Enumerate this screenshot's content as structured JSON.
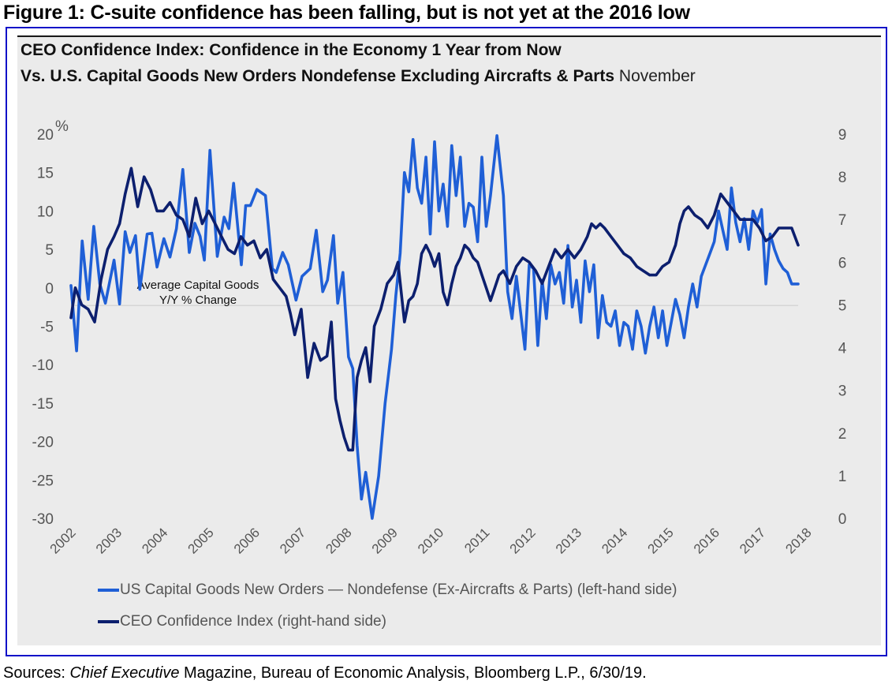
{
  "figure_title": "Figure 1: C-suite confidence has been falling, but is not yet at the 2016 low",
  "chart_title_line1": "CEO Confidence Index: Confidence in the Economy 1 Year from Now",
  "chart_title_line2_bold": "Vs. U.S. Capital Goods New Orders Nondefense Excluding Aircrafts & Parts",
  "chart_title_line2_normal": " November",
  "source_prefix": "Sources: ",
  "source_italic": "Chief Executive",
  "source_rest": " Magazine, Bureau of Economic Analysis, Bloomberg L.P., 6/30/19.",
  "colors": {
    "capital_goods": "#1f5fd6",
    "ceo_confidence": "#0c1f6e",
    "frame_border": "#1010c8",
    "panel_bg": "#ebebeb",
    "average_line": "#cfcfcf"
  },
  "chart_data": {
    "type": "line",
    "title": "CEO Confidence Index: Confidence in the Economy 1 Year from Now Vs. U.S. Capital Goods New Orders Nondefense Excluding Aircrafts & Parts November",
    "xlabel": "",
    "ylabel_left": "%",
    "ylabel_right": "",
    "x_tick_labels": [
      "2002",
      "2003",
      "2004",
      "2005",
      "2006",
      "2007",
      "2008",
      "2009",
      "2010",
      "2011",
      "2012",
      "2013",
      "2014",
      "2015",
      "2016",
      "2017",
      "2018"
    ],
    "x_range": [
      2002.0,
      2018.9
    ],
    "y_left": {
      "range": [
        -30,
        20
      ],
      "ticks": [
        20,
        15,
        10,
        5,
        0,
        -5,
        -10,
        -15,
        -20,
        -25,
        -30
      ],
      "unit_label": "%"
    },
    "y_right": {
      "range": [
        0,
        9
      ],
      "ticks": [
        9,
        8,
        7,
        6,
        5,
        4,
        3,
        2,
        1,
        0
      ]
    },
    "grid": false,
    "legend_position": "bottom-left",
    "legend": [
      "US Capital Goods New Orders — Nondefense (Ex-Aircrafts & Parts) (left-hand side)",
      "CEO Confidence Index (right-hand side)"
    ],
    "annotations": [
      {
        "text_line1": "Average Capital Goods",
        "text_line2": "Y/Y % Change",
        "value_left_axis": -2.3
      }
    ],
    "series": [
      {
        "name": "US Capital Goods New Orders — Nondefense (Ex-Aircrafts & Parts) (left-hand side)",
        "axis": "left",
        "x": [
          2002.0,
          2002.13,
          2002.26,
          2002.4,
          2002.53,
          2002.67,
          2002.8,
          2003.0,
          2003.13,
          2003.26,
          2003.37,
          2003.5,
          2003.6,
          2003.77,
          2003.88,
          2004.0,
          2004.16,
          2004.3,
          2004.45,
          2004.6,
          2004.75,
          2004.88,
          2005.0,
          2005.1,
          2005.23,
          2005.4,
          2005.56,
          2005.67,
          2005.78,
          2005.96,
          2006.06,
          2006.17,
          2006.32,
          2006.52,
          2006.68,
          2006.77,
          2006.92,
          2007.05,
          2007.23,
          2007.37,
          2007.56,
          2007.7,
          2007.85,
          2007.96,
          2008.1,
          2008.2,
          2008.32,
          2008.45,
          2008.55,
          2008.65,
          2008.75,
          2008.85,
          2009.0,
          2009.15,
          2009.3,
          2009.45,
          2009.55,
          2009.65,
          2009.75,
          2009.85,
          2009.95,
          2010.05,
          2010.15,
          2010.25,
          2010.35,
          2010.45,
          2010.55,
          2010.65,
          2010.75,
          2010.85,
          2010.95,
          2011.05,
          2011.15,
          2011.25,
          2011.35,
          2011.45,
          2011.55,
          2011.65,
          2011.75,
          2011.9,
          2012.05,
          2012.15,
          2012.25,
          2012.35,
          2012.45,
          2012.55,
          2012.65,
          2012.75,
          2012.85,
          2012.95,
          2013.05,
          2013.15,
          2013.25,
          2013.35,
          2013.45,
          2013.55,
          2013.65,
          2013.75,
          2013.85,
          2013.95,
          2014.05,
          2014.15,
          2014.25,
          2014.35,
          2014.45,
          2014.55,
          2014.65,
          2014.75,
          2014.85,
          2014.95,
          2015.05,
          2015.15,
          2015.25,
          2015.35,
          2015.45,
          2015.55,
          2015.65,
          2015.75,
          2015.85,
          2015.95,
          2016.05,
          2016.15,
          2016.25,
          2016.35,
          2016.45,
          2016.55,
          2016.65,
          2016.75,
          2016.85,
          2016.95,
          2017.05,
          2017.15,
          2017.25,
          2017.35,
          2017.45,
          2017.55,
          2017.65,
          2017.75,
          2017.85,
          2017.95,
          2018.05,
          2018.15,
          2018.25,
          2018.35,
          2018.45,
          2018.55,
          2018.65,
          2018.75,
          2018.9
        ],
        "values": [
          0.3,
          -8.2,
          6.1,
          -1.5,
          8.0,
          0.5,
          -2.0,
          3.6,
          -2.1,
          7.3,
          4.6,
          6.8,
          -0.2,
          7.0,
          7.1,
          2.7,
          6.4,
          4.0,
          7.7,
          15.4,
          4.6,
          8.4,
          6.7,
          3.6,
          17.9,
          4.1,
          9.2,
          7.7,
          13.6,
          3.0,
          10.7,
          10.7,
          12.8,
          12.0,
          2.5,
          2.0,
          4.6,
          3.0,
          -1.6,
          1.5,
          2.5,
          7.5,
          -0.5,
          1.0,
          6.8,
          -2.0,
          2.0,
          -9.0,
          -10.5,
          -20.5,
          -27.5,
          -24.0,
          -30.0,
          -24.5,
          -15.0,
          -8.0,
          -1.0,
          4.5,
          15.0,
          12.5,
          19.3,
          13.0,
          11.0,
          17.0,
          7.0,
          19.0,
          10.0,
          13.5,
          8.0,
          18.5,
          12.0,
          17.0,
          8.0,
          11.0,
          10.5,
          6.0,
          17.0,
          8.0,
          12.0,
          19.8,
          12.0,
          -0.5,
          -4.0,
          1.5,
          -3.2,
          -8.0,
          3.0,
          2.5,
          -7.5,
          1.0,
          -4.0,
          3.0,
          0.5,
          2.0,
          -2.0,
          5.5,
          -2.5,
          1.0,
          -4.5,
          3.5,
          -0.5,
          3.0,
          -6.5,
          -1.0,
          -4.5,
          -5.0,
          -3.0,
          -7.5,
          -4.5,
          -5.0,
          -8.0,
          -3.0,
          -5.0,
          -8.5,
          -5.0,
          -2.5,
          -6.5,
          -3.0,
          -7.5,
          -4.5,
          -1.5,
          -3.5,
          -6.5,
          -2.5,
          0.5,
          -2.5,
          1.5,
          3.0,
          4.5,
          6.0,
          10.0,
          7.5,
          5.0,
          13.0,
          8.5,
          6.0,
          9.0,
          5.0,
          10.0,
          8.5,
          10.2,
          0.5,
          7.0,
          5.0,
          3.5,
          2.5,
          2.0,
          0.5,
          0.5
        ]
      },
      {
        "name": "CEO Confidence Index (right-hand side)",
        "axis": "right",
        "x": [
          2002.0,
          2002.1,
          2002.25,
          2002.4,
          2002.55,
          2002.7,
          2002.85,
          2003.0,
          2003.13,
          2003.26,
          2003.4,
          2003.55,
          2003.7,
          2003.85,
          2004.0,
          2004.15,
          2004.3,
          2004.45,
          2004.6,
          2004.75,
          2004.9,
          2005.05,
          2005.2,
          2005.35,
          2005.5,
          2005.65,
          2005.8,
          2005.95,
          2006.1,
          2006.25,
          2006.4,
          2006.55,
          2006.7,
          2006.85,
          2007.0,
          2007.1,
          2007.2,
          2007.35,
          2007.5,
          2007.65,
          2007.8,
          2007.95,
          2008.05,
          2008.15,
          2008.25,
          2008.35,
          2008.45,
          2008.55,
          2008.65,
          2008.75,
          2008.85,
          2008.95,
          2009.05,
          2009.2,
          2009.35,
          2009.5,
          2009.6,
          2009.75,
          2009.85,
          2009.95,
          2010.05,
          2010.15,
          2010.25,
          2010.35,
          2010.45,
          2010.55,
          2010.65,
          2010.75,
          2010.85,
          2010.95,
          2011.05,
          2011.15,
          2011.25,
          2011.35,
          2011.45,
          2011.55,
          2011.65,
          2011.75,
          2011.85,
          2011.95,
          2012.05,
          2012.2,
          2012.35,
          2012.5,
          2012.65,
          2012.8,
          2012.95,
          2013.1,
          2013.25,
          2013.4,
          2013.55,
          2013.7,
          2013.85,
          2014.0,
          2014.1,
          2014.2,
          2014.3,
          2014.4,
          2014.55,
          2014.7,
          2014.85,
          2015.0,
          2015.15,
          2015.3,
          2015.45,
          2015.6,
          2015.75,
          2015.9,
          2016.05,
          2016.15,
          2016.25,
          2016.35,
          2016.5,
          2016.65,
          2016.8,
          2016.95,
          2017.1,
          2017.25,
          2017.4,
          2017.55,
          2017.7,
          2017.85,
          2018.0,
          2018.15,
          2018.3,
          2018.45,
          2018.6,
          2018.75,
          2018.9
        ],
        "values": [
          4.7,
          5.4,
          5.0,
          4.9,
          4.6,
          5.6,
          6.3,
          6.6,
          6.9,
          7.6,
          8.2,
          7.3,
          8.0,
          7.7,
          7.2,
          7.2,
          7.4,
          7.1,
          7.0,
          6.6,
          7.5,
          6.9,
          7.2,
          6.9,
          6.6,
          6.3,
          6.2,
          6.6,
          6.4,
          6.5,
          6.1,
          6.3,
          5.6,
          5.4,
          5.2,
          4.8,
          4.3,
          4.9,
          3.3,
          4.1,
          3.7,
          3.8,
          4.6,
          2.8,
          2.3,
          1.9,
          1.6,
          1.6,
          3.3,
          3.7,
          4.0,
          3.2,
          4.5,
          4.9,
          5.5,
          5.7,
          6.0,
          4.6,
          5.1,
          5.2,
          5.5,
          6.2,
          6.4,
          6.2,
          5.9,
          6.2,
          5.3,
          5.0,
          5.5,
          5.9,
          6.1,
          6.4,
          6.3,
          6.1,
          6.0,
          5.7,
          5.4,
          5.1,
          5.4,
          5.7,
          5.8,
          5.5,
          5.9,
          6.1,
          6.0,
          5.8,
          5.5,
          5.9,
          6.3,
          6.1,
          6.3,
          6.1,
          6.3,
          6.6,
          6.9,
          6.8,
          6.9,
          6.8,
          6.6,
          6.4,
          6.2,
          6.1,
          5.9,
          5.8,
          5.7,
          5.7,
          5.9,
          6.0,
          6.4,
          6.9,
          7.2,
          7.3,
          7.1,
          7.0,
          6.8,
          7.1,
          7.6,
          7.4,
          7.2,
          7.0,
          7.0,
          7.0,
          6.8,
          6.5,
          6.6,
          6.8,
          6.8,
          6.8,
          6.4
        ]
      }
    ]
  }
}
